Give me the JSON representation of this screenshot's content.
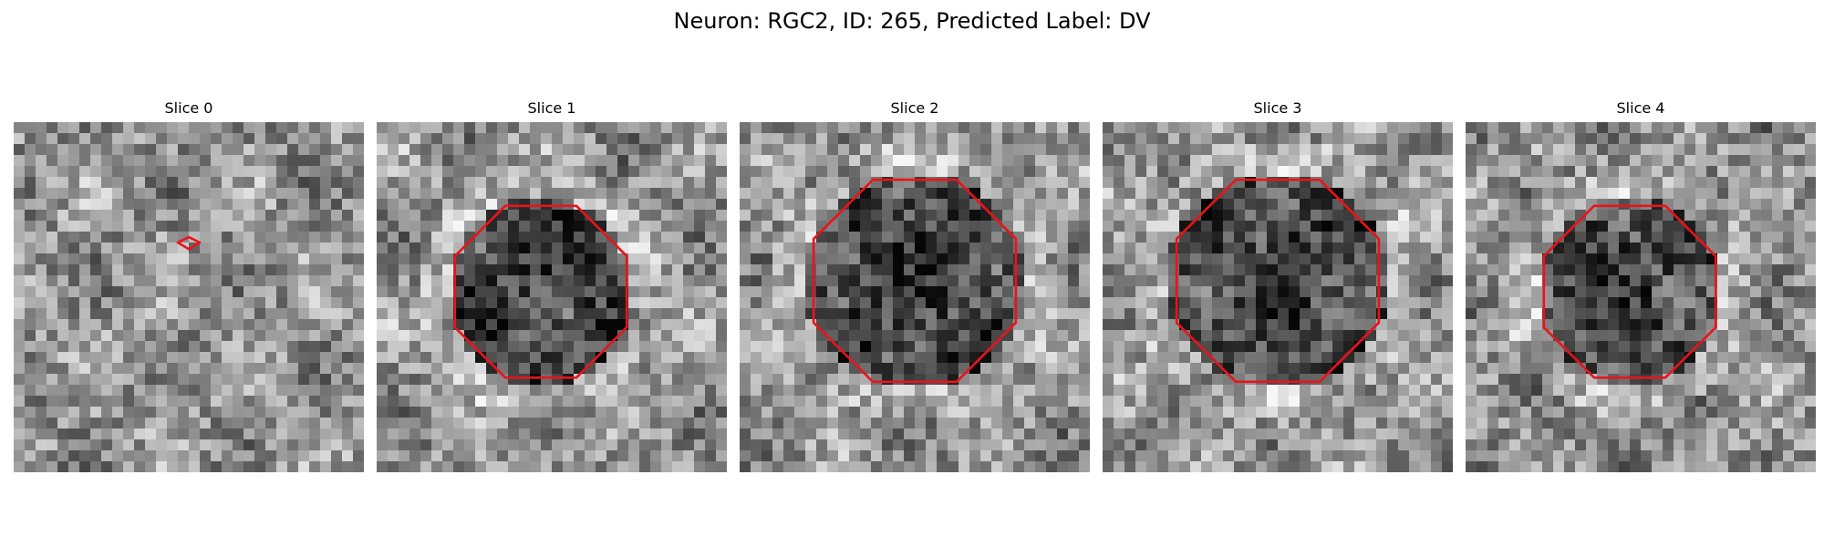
{
  "figure": {
    "title": "Neuron: RGC2, ID: 265, Predicted Label: DV"
  },
  "panels": [
    {
      "title": "Slice 0",
      "seed": 11,
      "cell": "none"
    },
    {
      "title": "Slice 1",
      "seed": 23,
      "cell": "medium"
    },
    {
      "title": "Slice 2",
      "seed": 37,
      "cell": "large"
    },
    {
      "title": "Slice 3",
      "seed": 51,
      "cell": "large"
    },
    {
      "title": "Slice 4",
      "seed": 67,
      "cell": "medium"
    }
  ],
  "colors": {
    "contour": "#e8141a",
    "background": "#ffffff"
  }
}
